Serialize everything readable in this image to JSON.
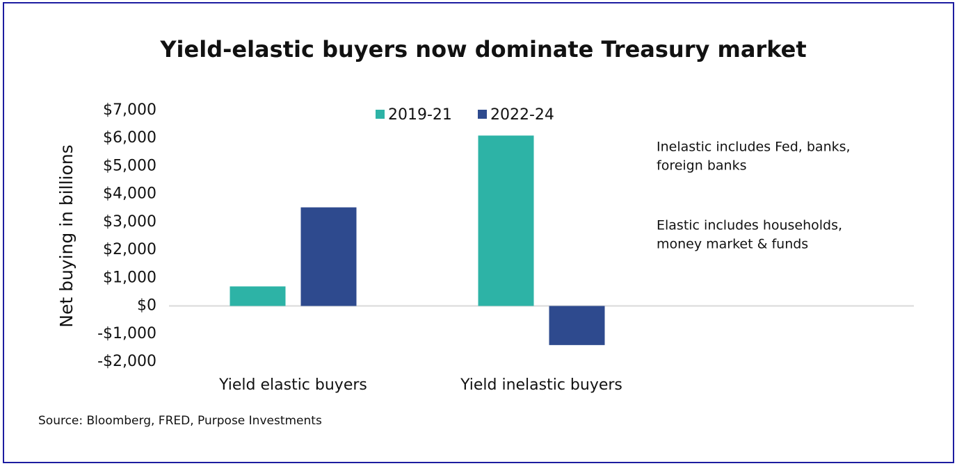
{
  "chart_data": {
    "type": "bar",
    "title": "Yield-elastic buyers now dominate Treasury market",
    "y_label": "Net buying in billions",
    "categories": [
      "Yield elastic buyers",
      "Yield inelastic buyers",
      null
    ],
    "series": [
      {
        "name": "2019-21",
        "color": "#2db3a6",
        "values": [
          700,
          6100,
          null
        ]
      },
      {
        "name": "2022-24",
        "color": "#2e4a8e",
        "values": [
          3530,
          -1400,
          null
        ]
      }
    ],
    "ylim": [
      -2000,
      7000
    ],
    "yticks": [
      {
        "value": -2000,
        "label": "-$2,000"
      },
      {
        "value": -1000,
        "label": "-$1,000"
      },
      {
        "value": 0,
        "label": "$0"
      },
      {
        "value": 1000,
        "label": "$1,000"
      },
      {
        "value": 2000,
        "label": "$2,000"
      },
      {
        "value": 3000,
        "label": "$3,000"
      },
      {
        "value": 4000,
        "label": "$4,000"
      },
      {
        "value": 5000,
        "label": "$5,000"
      },
      {
        "value": 6000,
        "label": "$6,000"
      },
      {
        "value": 7000,
        "label": "$7,000"
      }
    ],
    "legend": "top",
    "annotations": [
      [
        "Inelastic includes Fed, banks,",
        "foreign banks"
      ],
      [
        "Elastic includes households,",
        "money market & funds"
      ]
    ],
    "source": "Source: Bloomberg, FRED, Purpose Investments"
  }
}
